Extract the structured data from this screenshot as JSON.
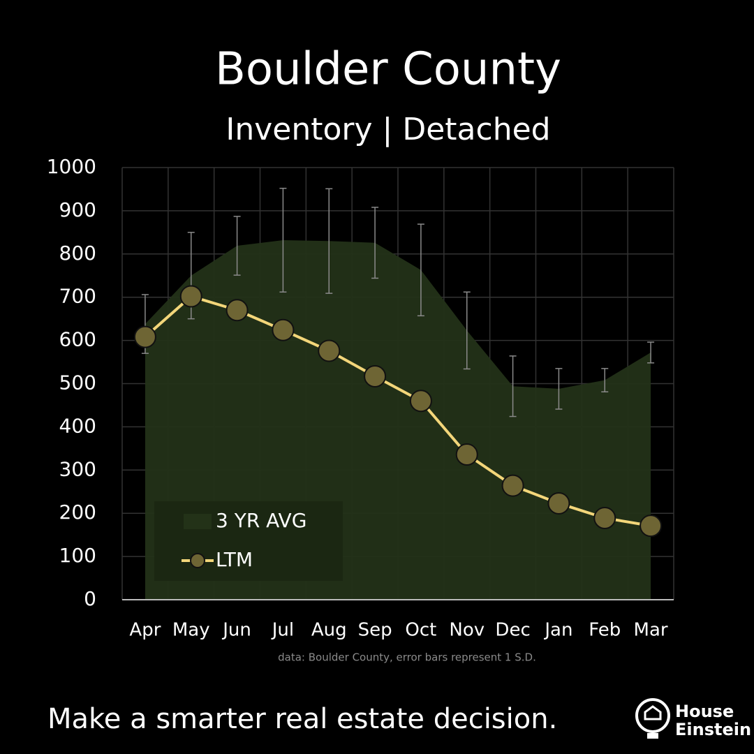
{
  "chart_data": {
    "type": "area-line",
    "title": "Boulder County",
    "subtitle": "Inventory | Detached",
    "note": "data: Boulder County,  error bars represent 1 S.D.",
    "categories": [
      "Apr",
      "May",
      "Jun",
      "Jul",
      "Aug",
      "Sep",
      "Oct",
      "Nov",
      "Dec",
      "Jan",
      "Feb",
      "Mar"
    ],
    "series": [
      {
        "name": "3 YR AVG",
        "kind": "area",
        "color": "#233218",
        "values": [
          638,
          750,
          819,
          832,
          830,
          826,
          763,
          623,
          494,
          488,
          508,
          572
        ],
        "errors": [
          68,
          100,
          68,
          120,
          121,
          82,
          106,
          89,
          70,
          47,
          27,
          24
        ]
      },
      {
        "name": "LTM",
        "kind": "line",
        "color": "#f3d67a",
        "values": [
          608,
          702,
          670,
          624,
          576,
          517,
          460,
          336,
          264,
          223,
          189,
          171
        ]
      }
    ],
    "ylim": [
      0,
      1000
    ],
    "yticks": [
      0,
      100,
      200,
      300,
      400,
      500,
      600,
      700,
      800,
      900,
      1000
    ],
    "grid": true,
    "legend": "lower-left"
  },
  "footer": {
    "tagline": "Make a smarter real estate decision.",
    "logo_line1": "House",
    "logo_line2": "Einstein"
  }
}
